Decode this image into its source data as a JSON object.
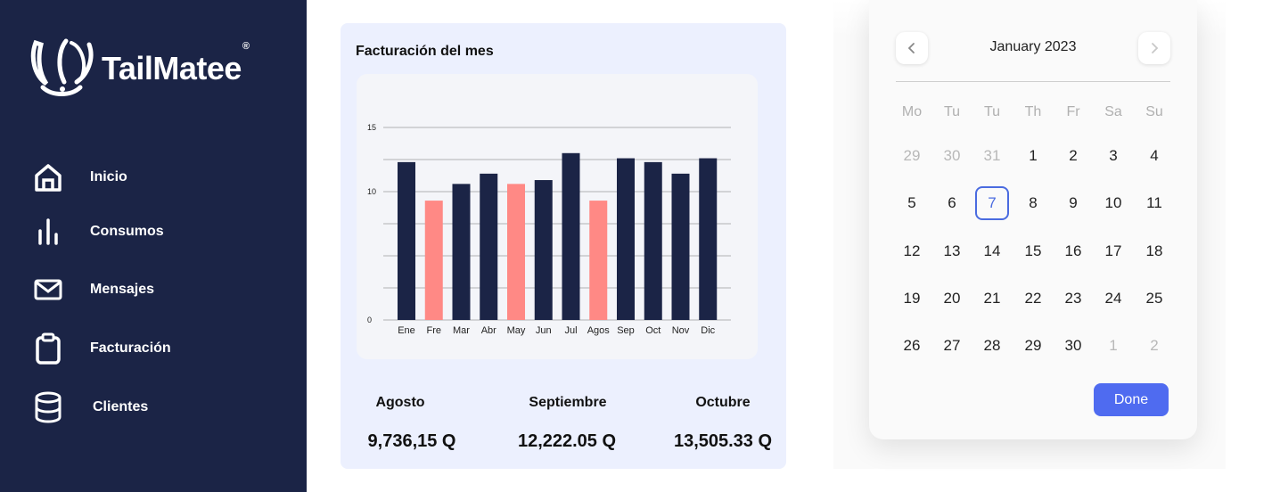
{
  "brand": {
    "name": "TailMatee",
    "registered": "®"
  },
  "sidebar": {
    "items": [
      {
        "label": "Inicio",
        "icon": "home-icon"
      },
      {
        "label": "Consumos",
        "icon": "bar-chart-icon"
      },
      {
        "label": "Mensajes",
        "icon": "mail-icon"
      },
      {
        "label": "Facturación",
        "icon": "clipboard-icon"
      },
      {
        "label": "Clientes",
        "icon": "database-icon"
      }
    ]
  },
  "billing": {
    "title": "Facturación del mes",
    "summary": [
      {
        "label": "Agosto",
        "value": "9,736,15 Q"
      },
      {
        "label": "Septiembre",
        "value": "12,222.05 Q"
      },
      {
        "label": "Octubre",
        "value": "13,505.33 Q"
      }
    ]
  },
  "chart_data": {
    "type": "bar",
    "title": "",
    "xlabel": "",
    "ylabel": "",
    "categories": [
      "Ene",
      "Fre",
      "Mar",
      "Abr",
      "May",
      "Jun",
      "Jul",
      "Agos",
      "Sep",
      "Oct",
      "Nov",
      "Dic"
    ],
    "values": [
      12.3,
      9.3,
      10.6,
      11.4,
      10.6,
      10.9,
      13.0,
      9.3,
      12.6,
      12.3,
      11.4,
      12.6
    ],
    "highlighted": [
      false,
      true,
      false,
      false,
      true,
      false,
      false,
      true,
      false,
      false,
      false,
      false
    ],
    "ylim": [
      0,
      16
    ],
    "yticks": [
      0,
      10,
      15
    ],
    "grid_lines": [
      2.5,
      5,
      7.5,
      10,
      12.5,
      15
    ],
    "colors": {
      "primary": "#1b2446",
      "highlight": "#ff8985"
    },
    "grid": true
  },
  "calendar": {
    "month_label": "January 2023",
    "weekdays": [
      "Mo",
      "Tu",
      "Tu",
      "Th",
      "Fr",
      "Sa",
      "Su"
    ],
    "weeks": [
      [
        {
          "d": "29",
          "m": true
        },
        {
          "d": "30",
          "m": true
        },
        {
          "d": "31",
          "m": true
        },
        {
          "d": "1"
        },
        {
          "d": "2"
        },
        {
          "d": "3"
        },
        {
          "d": "4"
        }
      ],
      [
        {
          "d": "5"
        },
        {
          "d": "6"
        },
        {
          "d": "7",
          "sel": true
        },
        {
          "d": "8"
        },
        {
          "d": "9"
        },
        {
          "d": "10"
        },
        {
          "d": "11"
        }
      ],
      [
        {
          "d": "12"
        },
        {
          "d": "13"
        },
        {
          "d": "14"
        },
        {
          "d": "15"
        },
        {
          "d": "16"
        },
        {
          "d": "17"
        },
        {
          "d": "18"
        }
      ],
      [
        {
          "d": "19"
        },
        {
          "d": "20"
        },
        {
          "d": "21"
        },
        {
          "d": "22"
        },
        {
          "d": "23"
        },
        {
          "d": "24"
        },
        {
          "d": "25"
        }
      ],
      [
        {
          "d": "26"
        },
        {
          "d": "27"
        },
        {
          "d": "28"
        },
        {
          "d": "29"
        },
        {
          "d": "30"
        },
        {
          "d": "1",
          "m": true
        },
        {
          "d": "2",
          "m": true
        }
      ]
    ],
    "done_label": "Done",
    "prev_icon": "chevron-left-icon",
    "next_icon": "chevron-right-icon",
    "accent": "#4f6bf0"
  }
}
